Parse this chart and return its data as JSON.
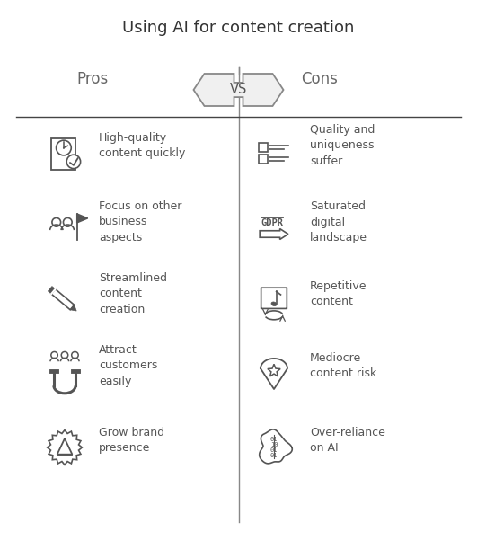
{
  "title": "Using AI for content creation",
  "title_fontsize": 13,
  "pros_label": "Pros",
  "cons_label": "Cons",
  "vs_label": "VS",
  "background_color": "#ffffff",
  "text_color": "#555555",
  "line_color": "#888888",
  "pros": [
    {
      "text": "High-quality\ncontent quickly"
    },
    {
      "text": "Focus on other\nbusiness\naspects"
    },
    {
      "text": "Streamlined\ncontent\ncreation"
    },
    {
      "text": "Attract\ncustomers\neasily"
    },
    {
      "text": "Grow brand\npresence"
    }
  ],
  "cons": [
    {
      "text": "Quality and\nuniqueness\nsuffer"
    },
    {
      "text": "Saturated\ndigital\nlandscape"
    },
    {
      "text": "Repetitive\ncontent"
    },
    {
      "text": "Mediocre\ncontent risk"
    },
    {
      "text": "Over-reliance\non AI"
    }
  ],
  "icon_color": "#555555",
  "figsize": [
    5.31,
    6.01
  ],
  "dpi": 100
}
